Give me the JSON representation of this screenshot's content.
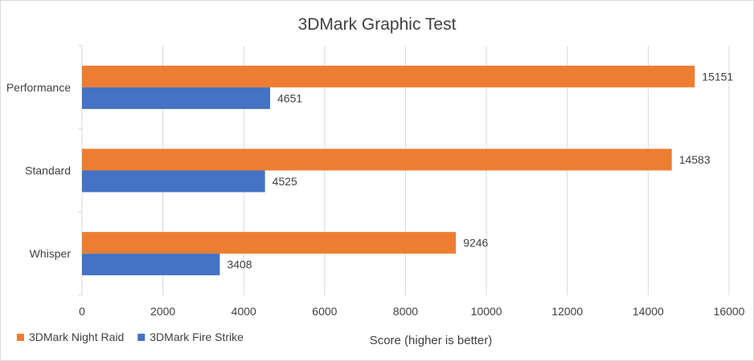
{
  "chart_data": {
    "type": "bar",
    "orientation": "horizontal",
    "title": "3DMark Graphic Test",
    "xlabel": "Score (higher is better)",
    "ylabel": "",
    "categories": [
      "Performance",
      "Standard",
      "Whisper"
    ],
    "series": [
      {
        "name": "3DMark Night Raid",
        "color": "#ED7D31",
        "values": [
          15151,
          14583,
          9246
        ]
      },
      {
        "name": "3DMark Fire Strike",
        "color": "#4472C4",
        "values": [
          4651,
          4525,
          3408
        ]
      }
    ],
    "xlim": [
      0,
      16000
    ],
    "xticks": [
      0,
      2000,
      4000,
      6000,
      8000,
      10000,
      12000,
      14000,
      16000
    ],
    "grid": true,
    "legend_position": "bottom-left",
    "data_labels": true
  }
}
